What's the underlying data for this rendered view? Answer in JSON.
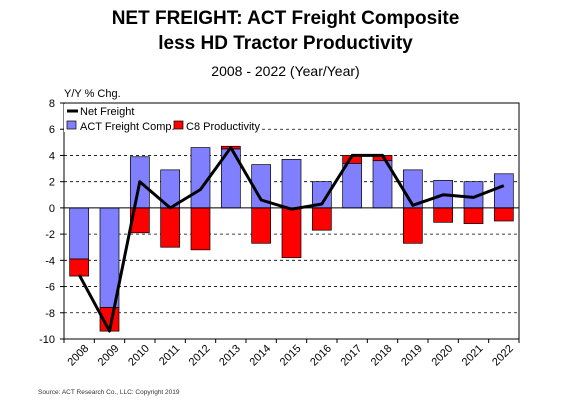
{
  "chart_data": {
    "type": "bar+line",
    "title_lines": [
      "NET FREIGHT:  ACT Freight Composite",
      "less HD Tractor Productivity"
    ],
    "subtitle": "2008 - 2022 (Year/Year)",
    "ylabel": "Y/Y % Chg.",
    "ylim": [
      -10,
      8
    ],
    "yticks": [
      -10,
      -8,
      -6,
      -4,
      -2,
      0,
      2,
      4,
      6,
      8
    ],
    "grid": true,
    "legend_position": "top-left",
    "categories": [
      "2008",
      "2009",
      "2010",
      "2011",
      "2012",
      "2013",
      "2014",
      "2015",
      "2016",
      "2017",
      "2018",
      "2019",
      "2020",
      "2021",
      "2022"
    ],
    "series": [
      {
        "name": "ACT Freight Comp.",
        "kind": "bar",
        "color": "#8080ff",
        "values": [
          -3.9,
          -7.6,
          3.9,
          2.9,
          4.6,
          4.5,
          3.3,
          3.7,
          2.0,
          3.4,
          3.6,
          2.9,
          2.1,
          2.0,
          2.6
        ]
      },
      {
        "name": "C8 Productivity",
        "kind": "bar",
        "color": "#ff0000",
        "values": [
          -1.3,
          -1.8,
          -1.9,
          -3.0,
          -3.2,
          0.2,
          -2.7,
          -3.8,
          -1.7,
          0.6,
          0.4,
          -2.7,
          -1.1,
          -1.2,
          -1.0
        ]
      },
      {
        "name": "Net Freight",
        "kind": "line",
        "color": "#000000",
        "values": [
          -5.1,
          -9.4,
          2.0,
          0.0,
          1.4,
          4.6,
          0.6,
          -0.1,
          0.3,
          4.0,
          4.0,
          0.2,
          1.0,
          0.8,
          1.7
        ]
      }
    ],
    "source": "Source: ACT Research Co., LLC: Copyright 2019"
  }
}
